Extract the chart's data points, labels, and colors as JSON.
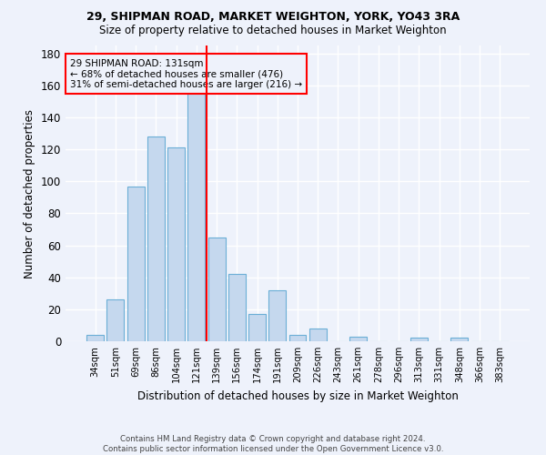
{
  "title1": "29, SHIPMAN ROAD, MARKET WEIGHTON, YORK, YO43 3RA",
  "title2": "Size of property relative to detached houses in Market Weighton",
  "xlabel": "Distribution of detached houses by size in Market Weighton",
  "ylabel": "Number of detached properties",
  "categories": [
    "34sqm",
    "51sqm",
    "69sqm",
    "86sqm",
    "104sqm",
    "121sqm",
    "139sqm",
    "156sqm",
    "174sqm",
    "191sqm",
    "209sqm",
    "226sqm",
    "243sqm",
    "261sqm",
    "278sqm",
    "296sqm",
    "313sqm",
    "331sqm",
    "348sqm",
    "366sqm",
    "383sqm"
  ],
  "values": [
    4,
    26,
    97,
    128,
    121,
    160,
    65,
    42,
    17,
    32,
    4,
    8,
    0,
    3,
    0,
    0,
    2,
    0,
    2,
    0,
    0
  ],
  "bar_color": "#c5d8ee",
  "bar_edge_color": "#6aaed6",
  "background_color": "#eef2fb",
  "grid_color": "#ffffff",
  "vline_x_index": 6,
  "vline_color": "red",
  "annotation_line1": "29 SHIPMAN ROAD: 131sqm",
  "annotation_line2": "← 68% of detached houses are smaller (476)",
  "annotation_line3": "31% of semi-detached houses are larger (216) →",
  "ylim": [
    0,
    185
  ],
  "yticks": [
    0,
    20,
    40,
    60,
    80,
    100,
    120,
    140,
    160,
    180
  ],
  "footer1": "Contains HM Land Registry data © Crown copyright and database right 2024.",
  "footer2": "Contains public sector information licensed under the Open Government Licence v3.0."
}
